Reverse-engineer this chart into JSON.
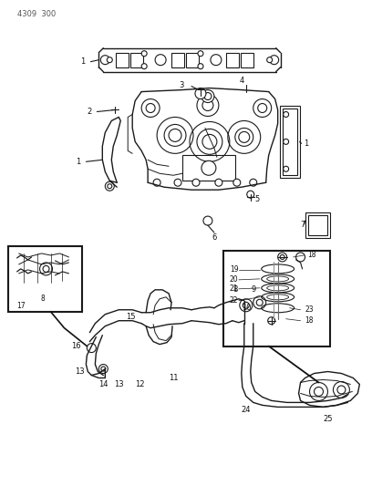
{
  "bg_color": "#ffffff",
  "fig_width": 4.08,
  "fig_height": 5.33,
  "dpi": 100,
  "header": "4309  300",
  "header_color": "#555555",
  "line_color": "#1a1a1a",
  "label_color": "#111111",
  "label_fontsize": 6.0,
  "lw": 0.8
}
